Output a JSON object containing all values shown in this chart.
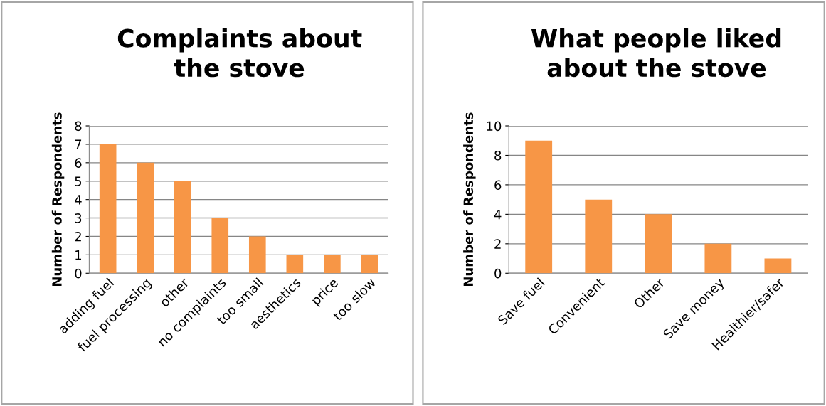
{
  "chart_data": [
    {
      "type": "bar",
      "title": "Complaints about the stove",
      "ylabel": "Number of Respondents",
      "categories": [
        "adding fuel",
        "fuel processing",
        "other",
        "no complaints",
        "too small",
        "aesthetics",
        "price",
        "too slow"
      ],
      "values": [
        7,
        6,
        5,
        3,
        2,
        1,
        1,
        1
      ],
      "color": "#f79646",
      "ylim": [
        0,
        8
      ],
      "yticks": [
        0,
        1,
        2,
        3,
        4,
        5,
        6,
        7,
        8
      ],
      "grid": "y"
    },
    {
      "type": "bar",
      "title": "What people liked about the stove",
      "ylabel": "Number of Respondents",
      "categories": [
        "Save fuel",
        "Convenient",
        "Other",
        "Save money",
        "Healthier/safer"
      ],
      "values": [
        9,
        5,
        4,
        2,
        1
      ],
      "color": "#f79646",
      "ylim": [
        0,
        10
      ],
      "yticks": [
        0,
        2,
        4,
        6,
        8,
        10
      ],
      "grid": "y"
    }
  ]
}
